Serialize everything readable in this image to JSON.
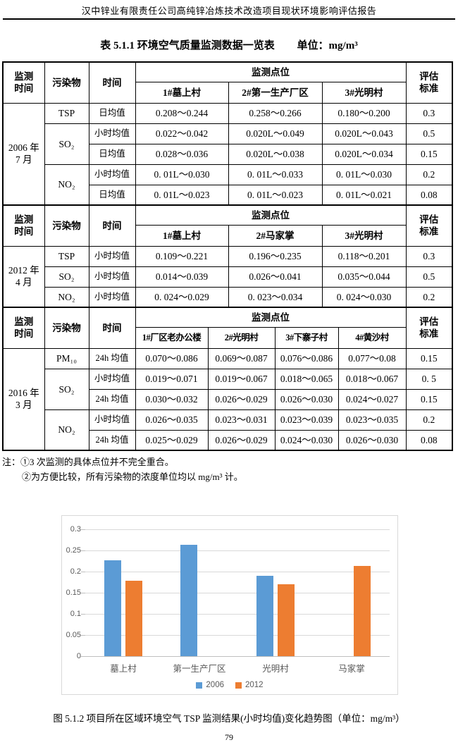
{
  "header": {
    "title": "汉中锌业有限责任公司高纯锌冶炼技术改造项目现状环境影响评估报告"
  },
  "table": {
    "title": "表 5.1.1   环境空气质量监测数据一览表",
    "unit": "单位：mg/m³",
    "labels": {
      "time": "监测\n时间",
      "pollutant": "污染物",
      "period": "时间",
      "sites": "监测点位",
      "standard": "评估\n标准"
    },
    "sections": [
      {
        "time": "2006 年\n7 月",
        "sites": [
          "1#墓上村",
          "2#第一生产厂区",
          "3#光明村"
        ],
        "rows": [
          {
            "pollutant": "TSP",
            "period": "日均值",
            "values": [
              "0.208～0.244",
              "0.258～0.266",
              "0.180～0.200"
            ],
            "standard": "0.3"
          },
          {
            "pollutant": "SO₂",
            "period": "小时均值",
            "values": [
              "0.022～0.042",
              "0.020L～0.049",
              "0.020L～0.043"
            ],
            "standard": "0.5"
          },
          {
            "period": "日均值",
            "values": [
              "0.028～0.036",
              "0.020L～0.038",
              "0.020L～0.034"
            ],
            "standard": "0.15"
          },
          {
            "pollutant": "NO₂",
            "period": "小时均值",
            "values": [
              "0. 01L～0.030",
              "0. 01L～0.033",
              "0. 01L～0.030"
            ],
            "standard": "0.2"
          },
          {
            "period": "日均值",
            "values": [
              "0. 01L～0.023",
              "0. 01L～0.023",
              "0. 01L～0.021"
            ],
            "standard": "0.08"
          }
        ]
      },
      {
        "time": "2012 年\n4 月",
        "sites": [
          "1#墓上村",
          "2#马家掌",
          "3#光明村"
        ],
        "rows": [
          {
            "pollutant": "TSP",
            "period": "小时均值",
            "values": [
              "0.109～0.221",
              "0.196～0.235",
              "0.118～0.201"
            ],
            "standard": "0.3"
          },
          {
            "pollutant": "SO₂",
            "period": "小时均值",
            "values": [
              "0.014～0.039",
              "0.026～0.041",
              "0.035～0.044"
            ],
            "standard": "0.5"
          },
          {
            "pollutant": "NO₂",
            "period": "小时均值",
            "values": [
              "0. 024～0.029",
              "0. 023～0.034",
              "0. 024～0.030"
            ],
            "standard": "0.2"
          }
        ]
      },
      {
        "time": "2016 年\n3 月",
        "sites": [
          "1#厂区老办公楼",
          "2#光明村",
          "3#下寨子村",
          "4#黄沙村"
        ],
        "rows": [
          {
            "pollutant": "PM₁₀",
            "period": "24h 均值",
            "values": [
              "0.070～0.086",
              "0.069～0.087",
              "0.076～0.086",
              "0.077～0.08"
            ],
            "standard": "0.15"
          },
          {
            "pollutant": "SO₂",
            "period": "小时均值",
            "values": [
              "0.019～0.071",
              "0.019～0.067",
              "0.018～0.065",
              "0.018～0.067"
            ],
            "standard": "0. 5"
          },
          {
            "period": "24h 均值",
            "values": [
              "0.030～0.032",
              "0.026～0.029",
              "0.026～0.030",
              "0.024～0.027"
            ],
            "standard": "0.15"
          },
          {
            "pollutant": "NO₂",
            "period": "小时均值",
            "values": [
              "0.026～0.035",
              "0.023～0.031",
              "0.023～0.039",
              "0.023～0.035"
            ],
            "standard": "0.2"
          },
          {
            "period": "24h 均值",
            "values": [
              "0.025～0.029",
              "0.026～0.029",
              "0.024～0.030",
              "0.026～0.030"
            ],
            "standard": "0.08"
          }
        ]
      }
    ]
  },
  "notes": {
    "line1": "注：①3 次监测的具体点位并不完全重合。",
    "line2": "②为方便比较，所有污染物的浓度单位均以 mg/m³ 计。"
  },
  "chart_data": {
    "type": "bar",
    "title": "",
    "categories": [
      "墓上村",
      "第一生产厂区",
      "光明村",
      "马家掌"
    ],
    "series": [
      {
        "name": "2006",
        "color": "#5B9BD5",
        "values": [
          0.226,
          0.263,
          0.19,
          null
        ]
      },
      {
        "name": "2012",
        "color": "#ED7D31",
        "values": [
          0.178,
          null,
          0.17,
          0.213
        ]
      }
    ],
    "ylim": [
      0,
      0.3
    ],
    "yticks": [
      0,
      0.05,
      0.1,
      0.15,
      0.2,
      0.25,
      0.3
    ],
    "grid": true,
    "legend_position": "bottom",
    "colors": {
      "grid": "#d9d9d9",
      "axis": "#bfbfbf",
      "tick_text": "#595959"
    }
  },
  "figure": {
    "caption": "图 5.1.2   项目所在区域环境空气 TSP 监测结果(小时均值)变化趋势图（单位：mg/m³）"
  },
  "page_number": "79"
}
